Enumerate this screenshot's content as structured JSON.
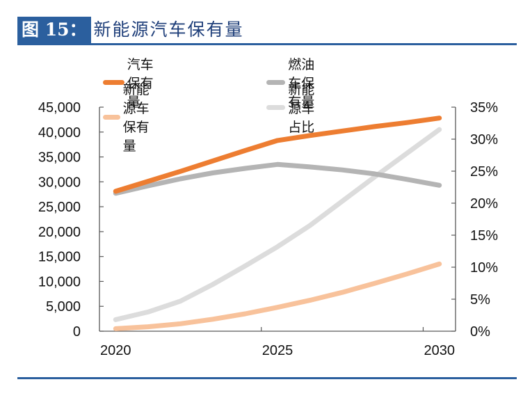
{
  "figure": {
    "label": "图 15：",
    "title": "新能源汽车保有量"
  },
  "colors": {
    "brand_blue": "#2b5f9e",
    "series": [
      "#ed7d31",
      "#b4b4b4",
      "#f8c29b",
      "#dcdcdc"
    ]
  },
  "chart_data": {
    "type": "line",
    "title": "新能源汽车保有量",
    "x": [
      2020,
      2021,
      2022,
      2023,
      2024,
      2025,
      2026,
      2027,
      2028,
      2029,
      2030
    ],
    "xtick_labels": [
      "2020",
      "2025",
      "2030"
    ],
    "xtick_label_years": [
      2020,
      2025,
      2030
    ],
    "xlabel": "",
    "ylabel": "",
    "y_left": {
      "range": [
        0,
        45000
      ],
      "ticks": [
        0,
        5000,
        10000,
        15000,
        20000,
        25000,
        30000,
        35000,
        40000,
        45000
      ],
      "tick_labels": [
        "0",
        "5,000",
        "10,000",
        "15,000",
        "20,000",
        "25,000",
        "30,000",
        "35,000",
        "40,000",
        "45,000"
      ]
    },
    "y_right": {
      "range": [
        0,
        35
      ],
      "unit": "%",
      "ticks": [
        0,
        5,
        10,
        15,
        20,
        25,
        30,
        35
      ],
      "tick_labels": [
        "0%",
        "5%",
        "10%",
        "15%",
        "20%",
        "25%",
        "30%",
        "35%"
      ]
    },
    "grid": false,
    "legend_position": "top",
    "series": [
      {
        "name": "汽车保有量",
        "axis": "left",
        "values": [
          28100,
          30100,
          32100,
          34200,
          36300,
          38300,
          39300,
          40200,
          41100,
          41900,
          42800
        ]
      },
      {
        "name": "燃油车保有量",
        "axis": "left",
        "values": [
          27700,
          29200,
          30600,
          31800,
          32700,
          33500,
          33000,
          32400,
          31600,
          30500,
          29300
        ]
      },
      {
        "name": "新能源车保有量",
        "axis": "left",
        "values": [
          500,
          900,
          1500,
          2400,
          3500,
          4800,
          6200,
          7800,
          9600,
          11500,
          13500
        ]
      },
      {
        "name": "新能源车占比",
        "axis": "right",
        "values": [
          1.8,
          3.0,
          4.7,
          7.3,
          10.2,
          13.2,
          16.5,
          20.3,
          24.1,
          27.8,
          31.5
        ]
      }
    ]
  }
}
